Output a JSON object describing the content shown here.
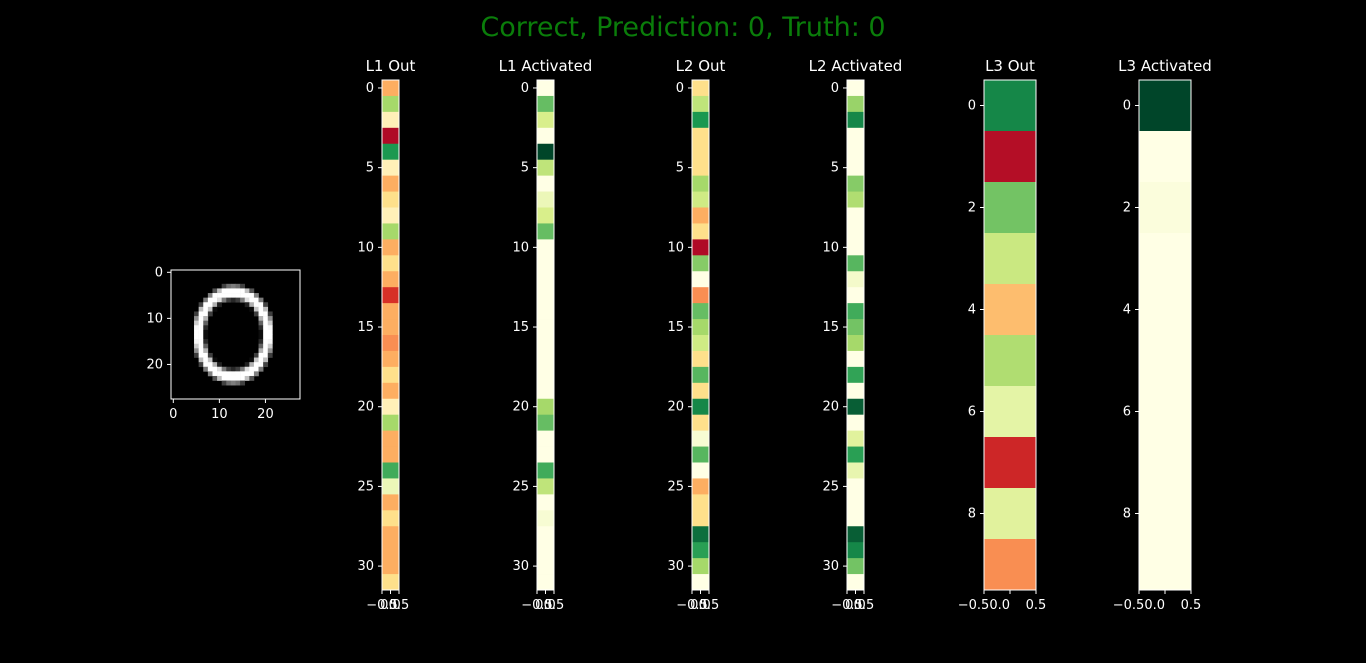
{
  "figure": {
    "title": "Correct, Prediction: 0, Truth: 0",
    "title_color": "#0a7d0a",
    "background": "#000000",
    "colormap": "RdYlGn"
  },
  "chart_data": [
    {
      "type": "heatmap",
      "name": "input-image",
      "title": "",
      "colormap": "gray",
      "rows": 28,
      "cols": 28,
      "ytick_labels": [
        "0",
        "10",
        "20"
      ],
      "xtick_labels": [
        "0",
        "10",
        "20"
      ],
      "strokes": [
        {
          "shape": "ring",
          "center": [
            14,
            13.5
          ],
          "radius": [
            9.2,
            7.5
          ],
          "thickness": 1.8,
          "intensity": 1.0
        }
      ]
    },
    {
      "type": "heatmap",
      "name": "l1-out",
      "title": "L1 Out",
      "rows": 32,
      "values": [
        0.3,
        0.7,
        0.45,
        0.02,
        0.9,
        0.45,
        0.3,
        0.4,
        0.45,
        0.7,
        0.3,
        0.4,
        0.3,
        0.1,
        0.3,
        0.3,
        0.25,
        0.3,
        0.4,
        0.3,
        0.45,
        0.7,
        0.3,
        0.3,
        0.85,
        0.55,
        0.3,
        0.4,
        0.3,
        0.3,
        0.3,
        0.4
      ],
      "ytick_labels": [
        "0",
        "5",
        "10",
        "15",
        "20",
        "25",
        "30"
      ],
      "xtick_labels": [
        "−0.5",
        "0.0",
        "0.5"
      ]
    },
    {
      "type": "heatmap",
      "name": "l1-activated",
      "title": "L1 Activated",
      "rows": 32,
      "values": [
        0.5,
        0.8,
        0.6,
        0.5,
        1.0,
        0.65,
        0.5,
        0.55,
        0.6,
        0.8,
        0.5,
        0.5,
        0.5,
        0.5,
        0.5,
        0.5,
        0.5,
        0.5,
        0.5,
        0.5,
        0.7,
        0.8,
        0.5,
        0.5,
        0.85,
        0.65,
        0.5,
        0.52,
        0.5,
        0.5,
        0.5,
        0.5
      ],
      "ytick_labels": [
        "0",
        "5",
        "10",
        "15",
        "20",
        "25",
        "30"
      ],
      "xtick_labels": [
        "−0.5",
        "0.0",
        "0.5"
      ]
    },
    {
      "type": "heatmap",
      "name": "l2-out",
      "title": "L2 Out",
      "rows": 32,
      "values": [
        0.4,
        0.65,
        0.9,
        0.4,
        0.4,
        0.4,
        0.7,
        0.62,
        0.3,
        0.4,
        0.02,
        0.75,
        0.5,
        0.25,
        0.8,
        0.7,
        0.62,
        0.4,
        0.82,
        0.4,
        0.92,
        0.4,
        0.52,
        0.82,
        0.5,
        0.3,
        0.4,
        0.4,
        0.95,
        0.88,
        0.7,
        0.5
      ],
      "ytick_labels": [
        "0",
        "5",
        "10",
        "15",
        "20",
        "25",
        "30"
      ],
      "xtick_labels": [
        "−0.5",
        "0.0",
        "0.5"
      ]
    },
    {
      "type": "heatmap",
      "name": "l2-activated",
      "title": "L2 Activated",
      "rows": 32,
      "values": [
        0.5,
        0.72,
        0.92,
        0.5,
        0.5,
        0.5,
        0.75,
        0.68,
        0.5,
        0.5,
        0.5,
        0.82,
        0.53,
        0.5,
        0.85,
        0.78,
        0.7,
        0.5,
        0.87,
        0.5,
        0.97,
        0.5,
        0.58,
        0.88,
        0.56,
        0.5,
        0.5,
        0.5,
        0.97,
        0.92,
        0.78,
        0.5
      ],
      "ytick_labels": [
        "0",
        "5",
        "10",
        "15",
        "20",
        "25",
        "30"
      ],
      "xtick_labels": [
        "−0.5",
        "0.0",
        "0.5"
      ]
    },
    {
      "type": "heatmap",
      "name": "l3-out",
      "title": "L3 Out",
      "rows": 10,
      "values": [
        0.92,
        0.03,
        0.78,
        0.63,
        0.33,
        0.68,
        0.57,
        0.08,
        0.58,
        0.25
      ],
      "ytick_labels": [
        "0",
        "2",
        "4",
        "6",
        "8"
      ],
      "xtick_labels": [
        "−0.50.0",
        "0.5"
      ]
    },
    {
      "type": "heatmap",
      "name": "l3-activated",
      "title": "L3 Activated",
      "rows": 10,
      "values": [
        1.0,
        0.5,
        0.51,
        0.5,
        0.5,
        0.5,
        0.5,
        0.5,
        0.5,
        0.5
      ],
      "ytick_labels": [
        "0",
        "2",
        "4",
        "6",
        "8"
      ],
      "xtick_labels": [
        "−0.50.0",
        "0.5"
      ]
    }
  ]
}
